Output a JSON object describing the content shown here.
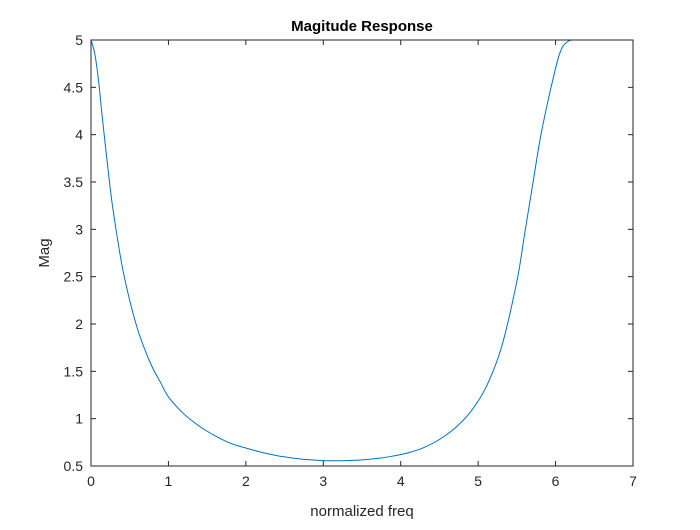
{
  "chart_data": {
    "type": "line",
    "title": "Magitude Response",
    "xlabel": "normalized freq",
    "ylabel": "Mag",
    "xlim": [
      0,
      7
    ],
    "ylim": [
      0.5,
      5
    ],
    "x_ticks": [
      0,
      1,
      2,
      3,
      4,
      5,
      6,
      7
    ],
    "x_tick_labels": [
      "0",
      "1",
      "2",
      "3",
      "4",
      "5",
      "6",
      "7"
    ],
    "y_ticks": [
      0.5,
      1,
      1.5,
      2,
      2.5,
      3,
      3.5,
      4,
      4.5,
      5
    ],
    "y_tick_labels": [
      "0.5",
      "1",
      "1.5",
      "2",
      "2.5",
      "3",
      "3.5",
      "4",
      "4.5",
      "5"
    ],
    "grid": false,
    "series": [
      {
        "color": "#0072BD",
        "x": [
          0,
          0.05,
          0.1,
          0.15,
          0.2,
          0.25,
          0.3,
          0.4,
          0.5,
          0.6,
          0.7,
          0.8,
          0.9,
          1.0,
          1.2,
          1.4,
          1.6,
          1.8,
          2.0,
          2.2,
          2.4,
          2.6,
          2.8,
          3.0,
          3.14,
          3.3,
          3.5,
          3.7,
          3.9,
          4.1,
          4.3,
          4.5,
          4.7,
          4.9,
          5.1,
          5.3,
          5.5,
          5.6,
          5.7,
          5.8,
          5.9,
          6.0,
          6.05,
          6.1,
          6.15,
          6.2,
          6.25,
          6.28
        ],
        "y": [
          5.0,
          4.85,
          4.55,
          4.15,
          3.78,
          3.42,
          3.12,
          2.62,
          2.25,
          1.95,
          1.72,
          1.53,
          1.38,
          1.23,
          1.05,
          0.92,
          0.82,
          0.74,
          0.69,
          0.645,
          0.61,
          0.585,
          0.567,
          0.557,
          0.555,
          0.557,
          0.565,
          0.58,
          0.605,
          0.64,
          0.695,
          0.78,
          0.9,
          1.07,
          1.33,
          1.75,
          2.45,
          2.95,
          3.45,
          3.95,
          4.35,
          4.7,
          4.85,
          4.94,
          4.98,
          5.0,
          5.0,
          5.0
        ]
      }
    ]
  }
}
